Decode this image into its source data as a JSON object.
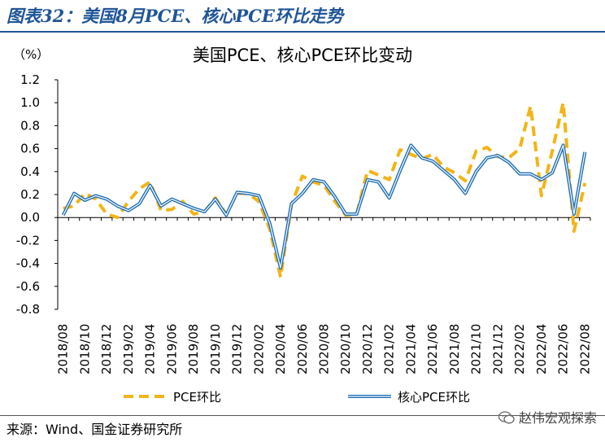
{
  "figure": {
    "label": "图表32：美国8月PCE、核心PCE环比走势",
    "source": "来源：Wind、国金证券研究所",
    "watermark": "赵伟宏观探索",
    "watermark_icon": "wechat-icon"
  },
  "chart_data": {
    "type": "line",
    "title": "美国PCE、核心PCE环比变动",
    "unit_label": "（%）",
    "xlabel": "",
    "ylabel": "",
    "ylim": [
      -0.8,
      1.2
    ],
    "yticks": [
      "1.2",
      "1.0",
      "0.8",
      "0.6",
      "0.4",
      "0.2",
      "0.0",
      "-0.2",
      "-0.4",
      "-0.6",
      "-0.8"
    ],
    "tick_labels": [
      "2018/08",
      "2018/10",
      "2018/12",
      "2019/02",
      "2019/04",
      "2019/06",
      "2019/08",
      "2019/10",
      "2019/12",
      "2020/02",
      "2020/04",
      "2020/06",
      "2020/08",
      "2020/10",
      "2020/12",
      "2021/02",
      "2021/04",
      "2021/06",
      "2021/08",
      "2021/10",
      "2021/12",
      "2022/02",
      "2022/04",
      "2022/06",
      "2022/08"
    ],
    "x": [
      "2018/08",
      "2018/09",
      "2018/10",
      "2018/11",
      "2018/12",
      "2019/01",
      "2019/02",
      "2019/03",
      "2019/04",
      "2019/05",
      "2019/06",
      "2019/07",
      "2019/08",
      "2019/09",
      "2019/10",
      "2019/11",
      "2019/12",
      "2020/01",
      "2020/02",
      "2020/03",
      "2020/04",
      "2020/05",
      "2020/06",
      "2020/07",
      "2020/08",
      "2020/09",
      "2020/10",
      "2020/11",
      "2020/12",
      "2021/01",
      "2021/02",
      "2021/03",
      "2021/04",
      "2021/05",
      "2021/06",
      "2021/07",
      "2021/08",
      "2021/09",
      "2021/10",
      "2021/11",
      "2021/12",
      "2022/01",
      "2022/02",
      "2022/03",
      "2022/04",
      "2022/05",
      "2022/06",
      "2022/07",
      "2022/08"
    ],
    "grid": false,
    "legend": "bottom",
    "series": [
      {
        "name": "PCE环比",
        "style": "dashed",
        "color": "#f2b418",
        "values": [
          0.08,
          0.1,
          0.21,
          0.16,
          0.03,
          0.0,
          0.14,
          0.25,
          0.31,
          0.06,
          0.07,
          0.14,
          0.03,
          0.05,
          0.17,
          0.03,
          0.21,
          0.21,
          0.14,
          -0.1,
          -0.52,
          0.11,
          0.36,
          0.31,
          0.28,
          0.14,
          0.02,
          0.03,
          0.41,
          0.37,
          0.33,
          0.59,
          0.55,
          0.51,
          0.55,
          0.44,
          0.39,
          0.32,
          0.58,
          0.61,
          0.53,
          0.52,
          0.6,
          0.97,
          0.19,
          0.58,
          1.0,
          -0.12,
          0.3
        ]
      },
      {
        "name": "核心PCE环比",
        "style": "solid-double",
        "color": "#1f6fb5",
        "values": [
          0.02,
          0.21,
          0.15,
          0.19,
          0.16,
          0.1,
          0.06,
          0.12,
          0.28,
          0.1,
          0.16,
          0.12,
          0.08,
          0.05,
          0.16,
          0.02,
          0.22,
          0.21,
          0.19,
          -0.05,
          -0.44,
          0.12,
          0.21,
          0.33,
          0.31,
          0.18,
          0.03,
          0.03,
          0.33,
          0.31,
          0.17,
          0.41,
          0.63,
          0.52,
          0.49,
          0.41,
          0.33,
          0.21,
          0.4,
          0.52,
          0.54,
          0.48,
          0.38,
          0.38,
          0.33,
          0.39,
          0.63,
          0.03,
          0.57
        ]
      }
    ]
  }
}
